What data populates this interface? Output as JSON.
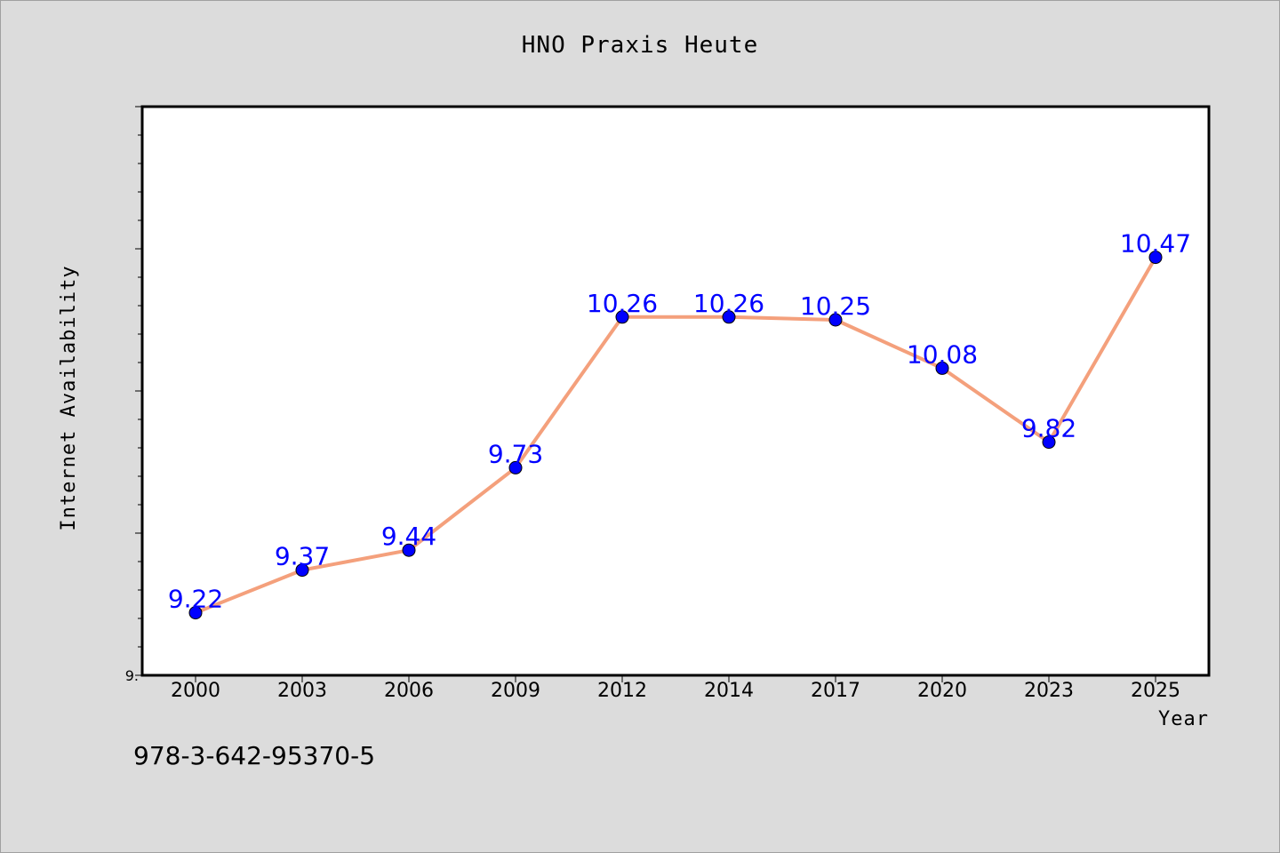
{
  "title": "HNO Praxis Heute",
  "footer_text": "978-3-642-95370-5",
  "colors": {
    "background": "#dcdcdc",
    "plot_background": "#ffffff",
    "line": "#f4a07c",
    "marker": "#0000ff",
    "data_label": "#0000ff"
  },
  "chart_data": {
    "type": "line",
    "title": "HNO Praxis Heute",
    "xlabel": "Year",
    "ylabel": "Internet Availability",
    "categories": [
      "2000",
      "2003",
      "2006",
      "2009",
      "2012",
      "2014",
      "2017",
      "2020",
      "2023",
      "2025"
    ],
    "values": [
      9.22,
      9.37,
      9.44,
      9.73,
      10.26,
      10.26,
      10.25,
      10.08,
      9.82,
      10.47
    ],
    "data_labels": [
      "9.22",
      "9.37",
      "9.44",
      "9.73",
      "10.26",
      "10.26",
      "10.25",
      "10.08",
      "9.82",
      "10.47"
    ],
    "y_tick_label": "9.",
    "ylim": [
      9.0,
      11.0
    ],
    "grid": false,
    "legend": "none"
  }
}
